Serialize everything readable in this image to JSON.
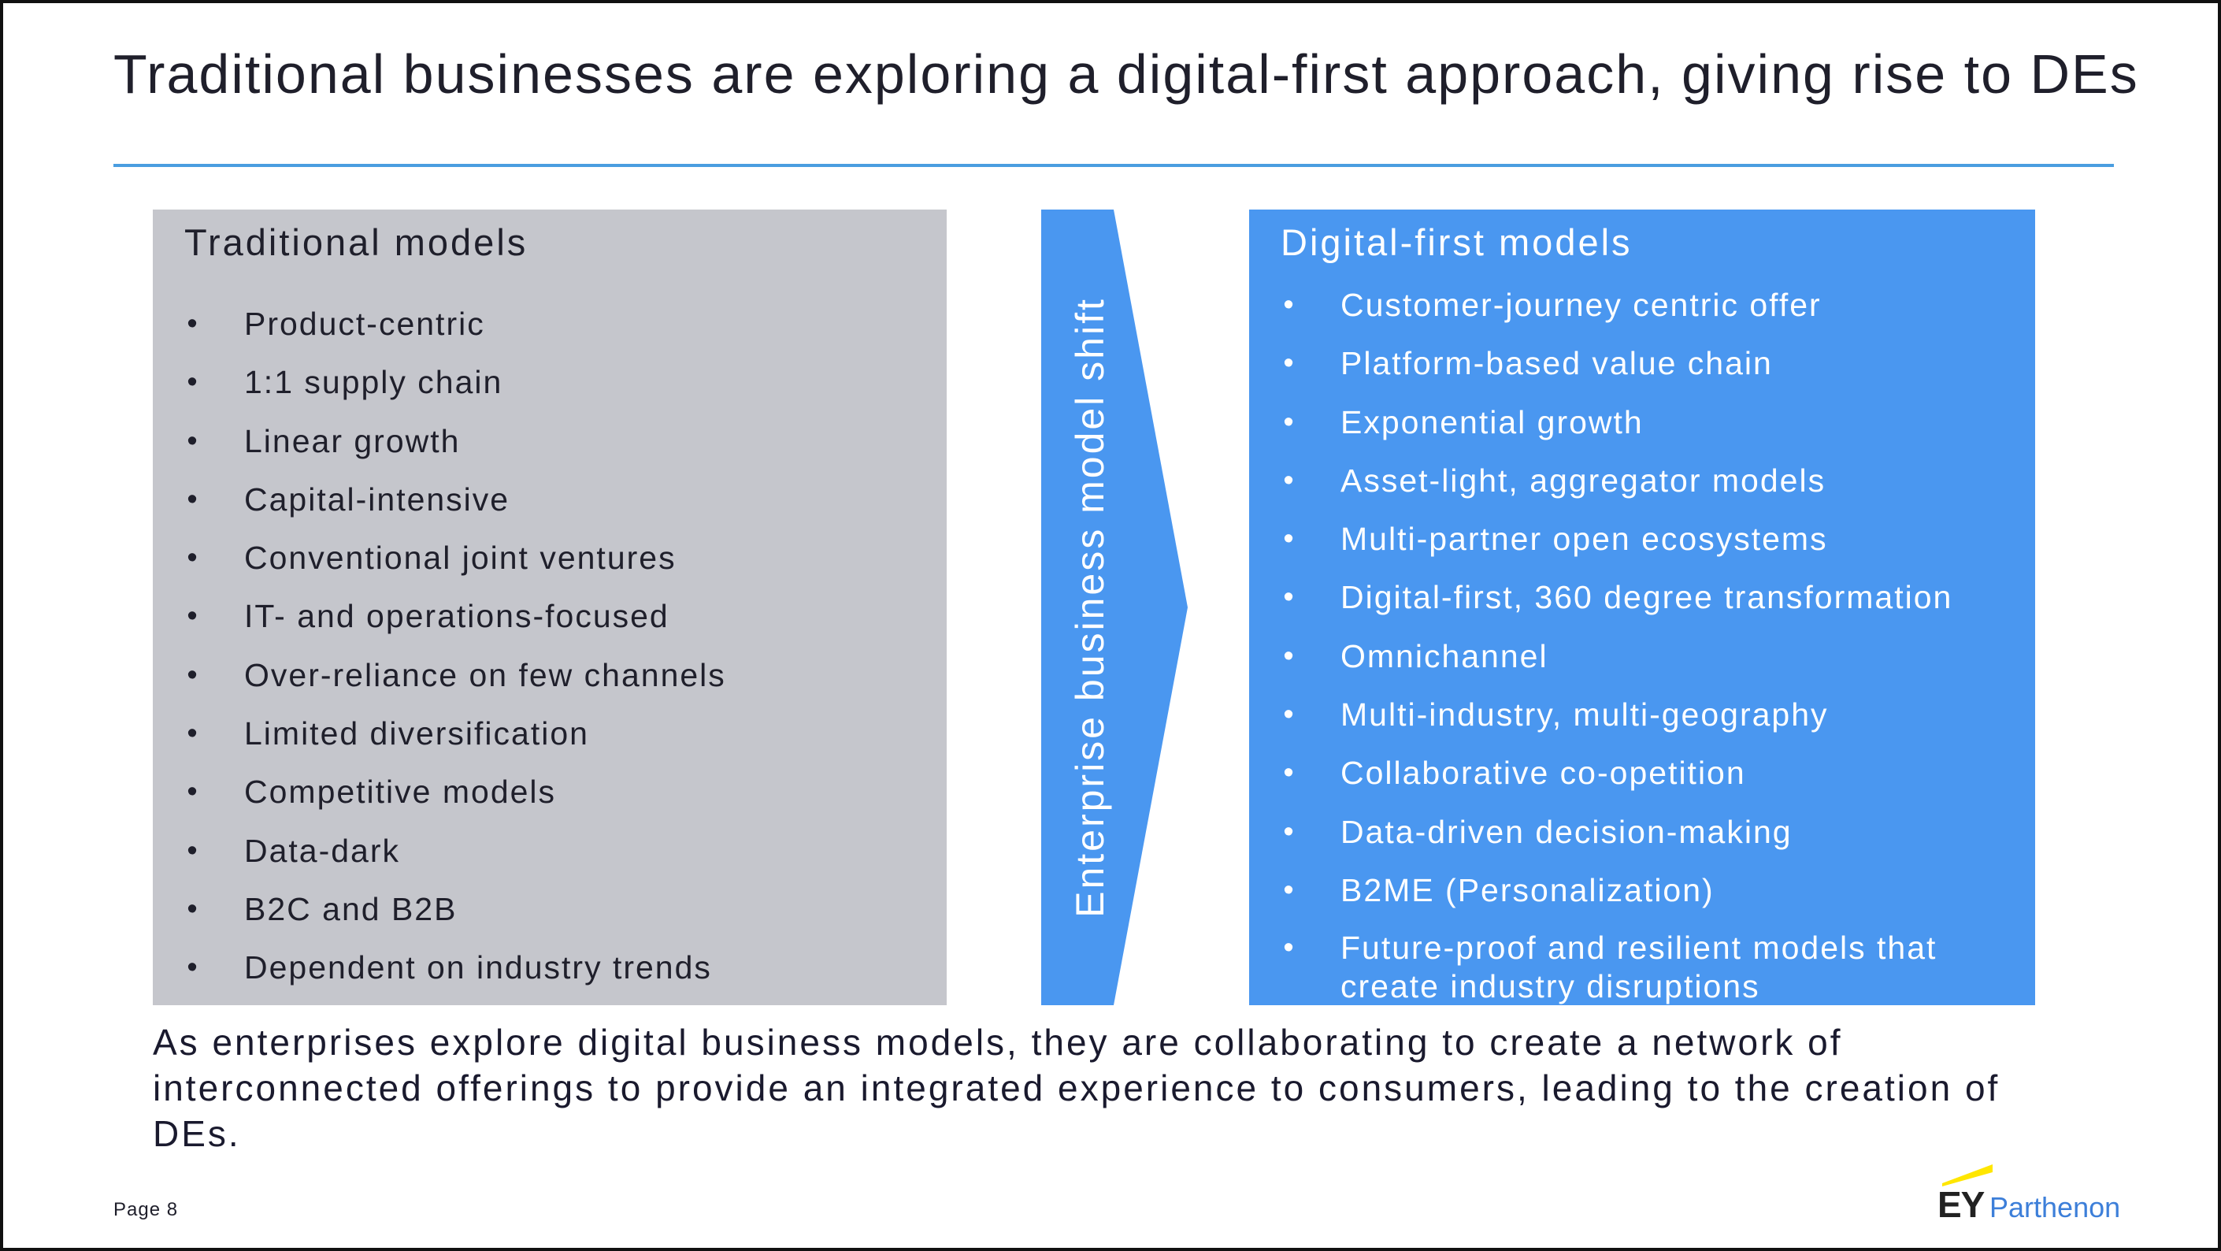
{
  "title": "Traditional businesses are exploring a digital-first approach, giving rise to DEs",
  "traditional": {
    "heading": "Traditional  models",
    "items": [
      "Product-centric",
      "1:1 supply chain",
      "Linear growth",
      "Capital-intensive",
      "Conventional joint ventures",
      "IT- and operations-focused",
      "Over-reliance on few channels",
      "Limited diversification",
      "Competitive models",
      "Data-dark",
      "B2C and B2B",
      "Dependent on industry trends"
    ]
  },
  "shift_label": "Enterprise business model shift",
  "digital": {
    "heading": "Digital-first  models",
    "items": [
      "Customer-journey centric offer",
      "Platform-based value chain",
      "Exponential growth",
      "Asset-light, aggregator models",
      "Multi-partner open ecosystems",
      "Digital-first, 360 degree transformation",
      "Omnichannel",
      "Multi-industry, multi-geography",
      "Collaborative co-opetition",
      "Data-driven decision-making",
      "B2ME (Personalization)",
      "Future-proof and resilient models that create industry disruptions"
    ]
  },
  "summary": "As enterprises explore digital business models, they are collaborating to create a network of interconnected offerings to provide an integrated experience to consumers, leading to the creation of DEs.",
  "footer": {
    "page": "Page 8",
    "logo_mark": "EY",
    "logo_name": "Parthenon"
  },
  "colors": {
    "rule": "#4a9de0",
    "traditional_panel": "#c5c6cc",
    "digital_panel": "#4a97f0",
    "chevron": "#4a97f0",
    "logo_beam": "#ffe600"
  },
  "icons": {
    "bullet": "bullet-dot",
    "logo": "ey-beam-logo"
  }
}
